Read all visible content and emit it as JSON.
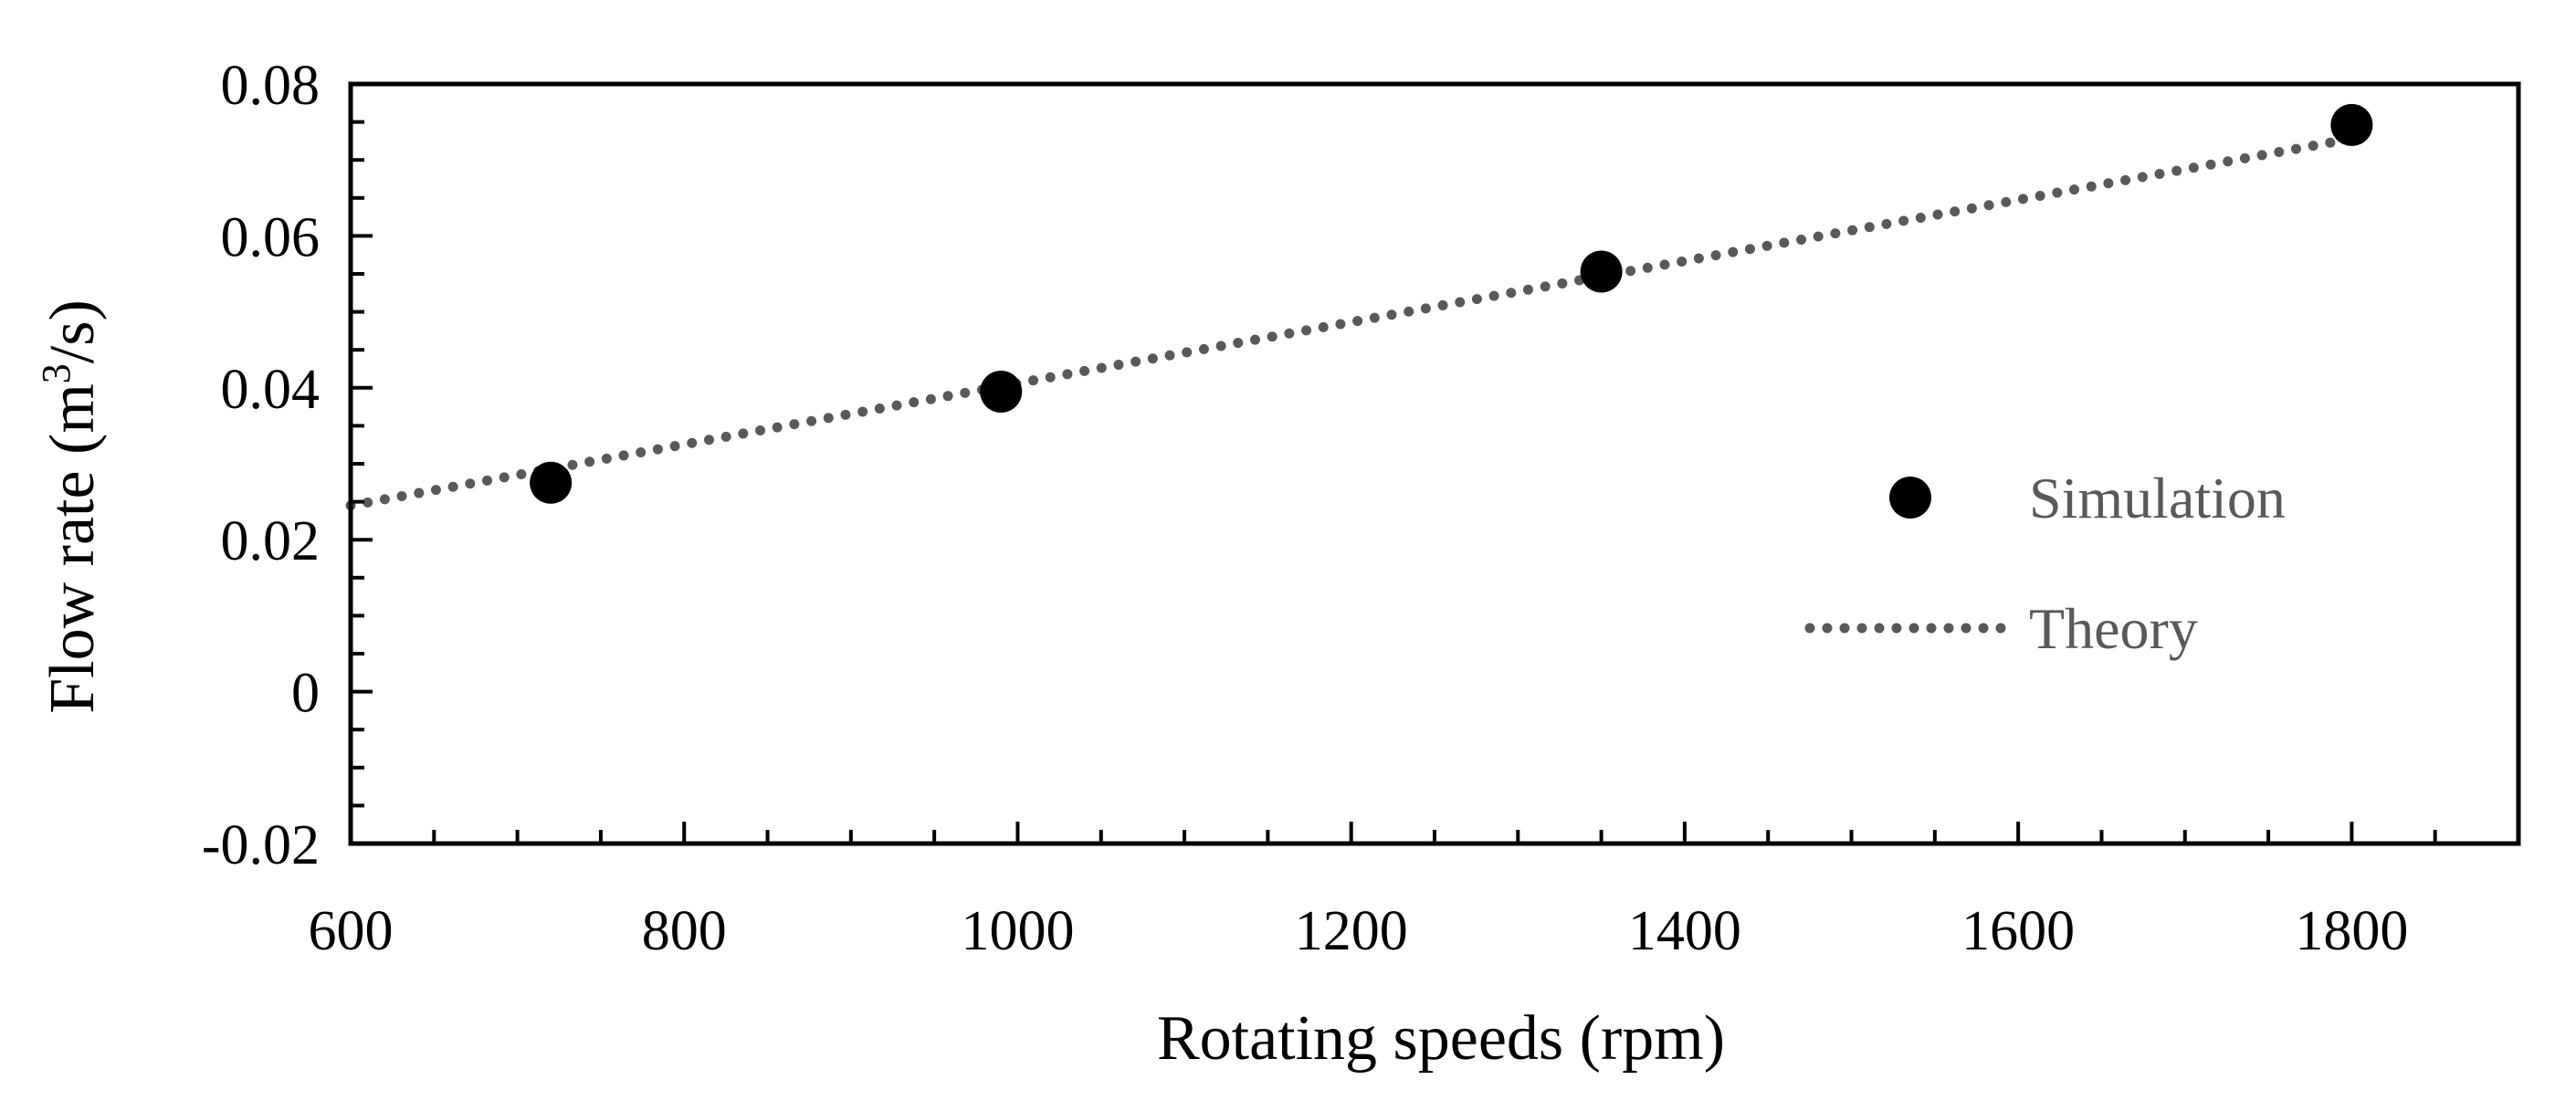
{
  "chart_data": {
    "type": "scatter",
    "title": "",
    "xlabel": "Rotating speeds (rpm)",
    "ylabel_main": "Flow rate (m",
    "ylabel_sup": "3",
    "ylabel_tail": "/s)",
    "xlim": [
      600,
      1900
    ],
    "ylim": [
      -0.02,
      0.08
    ],
    "x_ticks": [
      600,
      800,
      1000,
      1200,
      1400,
      1600,
      1800
    ],
    "x_tick_labels": [
      "600",
      "800",
      "1000",
      "1200",
      "1400",
      "1600",
      "1800"
    ],
    "y_ticks": [
      -0.02,
      0,
      0.02,
      0.04,
      0.06,
      0.08
    ],
    "y_tick_labels": [
      "-0.02",
      "0",
      "0.02",
      "0.04",
      "0.06",
      "0.08"
    ],
    "x_minor_step": 50,
    "y_minor_step": 0.005,
    "grid": false,
    "legend_position": "right",
    "series": [
      {
        "name": "Simulation",
        "kind": "scatter",
        "color": "#000000",
        "x": [
          720,
          990,
          1350,
          1800
        ],
        "y": [
          0.0275,
          0.0395,
          0.0553,
          0.0746
        ]
      },
      {
        "name": "Theory",
        "kind": "line",
        "style": "dotted",
        "color": "#595959",
        "x": [
          600,
          1800
        ],
        "y": [
          0.0245,
          0.0728
        ]
      }
    ]
  }
}
